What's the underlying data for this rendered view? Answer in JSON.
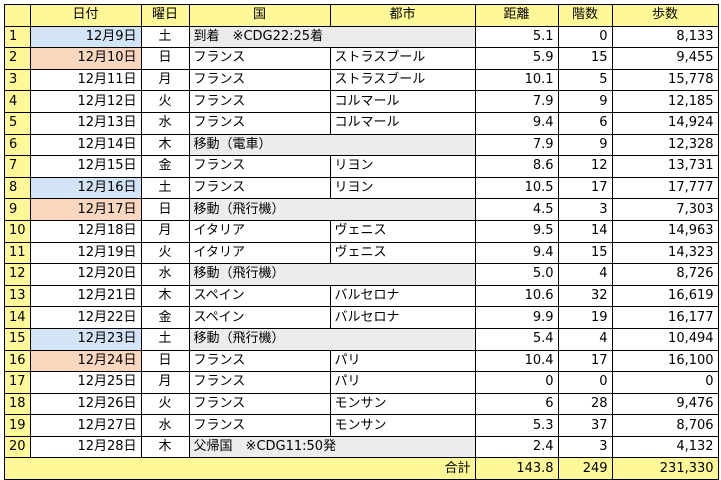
{
  "headers": [
    "",
    "日付",
    "曜日",
    "国",
    "都市",
    "距離",
    "階数",
    "歩数"
  ],
  "colors": {
    "header": "#fff899",
    "saturday": "#d4e4f7",
    "sunday": "#fbd7bf",
    "merged_gray": "#ececec"
  },
  "rows": [
    {
      "no": "1",
      "date": "12月9日",
      "day": "土",
      "country": "到着　※CDG22:25着",
      "city": "",
      "merged": true,
      "hl": "sat",
      "dist": "5.1",
      "floors": "0",
      "steps": "8,133"
    },
    {
      "no": "2",
      "date": "12月10日",
      "day": "日",
      "country": "フランス",
      "city": "ストラスブール",
      "merged": false,
      "hl": "sun",
      "dist": "5.9",
      "floors": "15",
      "steps": "9,455"
    },
    {
      "no": "3",
      "date": "12月11日",
      "day": "月",
      "country": "フランス",
      "city": "ストラスブール",
      "merged": false,
      "hl": "",
      "dist": "10.1",
      "floors": "5",
      "steps": "15,778"
    },
    {
      "no": "4",
      "date": "12月12日",
      "day": "火",
      "country": "フランス",
      "city": "コルマール",
      "merged": false,
      "hl": "",
      "dist": "7.9",
      "floors": "9",
      "steps": "12,185"
    },
    {
      "no": "5",
      "date": "12月13日",
      "day": "水",
      "country": "フランス",
      "city": "コルマール",
      "merged": false,
      "hl": "",
      "dist": "9.4",
      "floors": "6",
      "steps": "14,924"
    },
    {
      "no": "6",
      "date": "12月14日",
      "day": "木",
      "country": "移動（電車）",
      "city": "",
      "merged": true,
      "hl": "",
      "dist": "7.9",
      "floors": "9",
      "steps": "12,328"
    },
    {
      "no": "7",
      "date": "12月15日",
      "day": "金",
      "country": "フランス",
      "city": "リヨン",
      "merged": false,
      "hl": "",
      "dist": "8.6",
      "floors": "12",
      "steps": "13,731"
    },
    {
      "no": "8",
      "date": "12月16日",
      "day": "土",
      "country": "フランス",
      "city": "リヨン",
      "merged": false,
      "hl": "sat",
      "dist": "10.5",
      "floors": "17",
      "steps": "17,777"
    },
    {
      "no": "9",
      "date": "12月17日",
      "day": "日",
      "country": "移動（飛行機）",
      "city": "",
      "merged": true,
      "hl": "sun",
      "dist": "4.5",
      "floors": "3",
      "steps": "7,303"
    },
    {
      "no": "10",
      "date": "12月18日",
      "day": "月",
      "country": "イタリア",
      "city": "ヴェニス",
      "merged": false,
      "hl": "",
      "dist": "9.5",
      "floors": "14",
      "steps": "14,963"
    },
    {
      "no": "11",
      "date": "12月19日",
      "day": "火",
      "country": "イタリア",
      "city": "ヴェニス",
      "merged": false,
      "hl": "",
      "dist": "9.4",
      "floors": "15",
      "steps": "14,323"
    },
    {
      "no": "12",
      "date": "12月20日",
      "day": "水",
      "country": "移動（飛行機）",
      "city": "",
      "merged": true,
      "hl": "",
      "dist": "5.0",
      "floors": "4",
      "steps": "8,726"
    },
    {
      "no": "13",
      "date": "12月21日",
      "day": "木",
      "country": "スペイン",
      "city": "バルセロナ",
      "merged": false,
      "hl": "",
      "dist": "10.6",
      "floors": "32",
      "steps": "16,619"
    },
    {
      "no": "14",
      "date": "12月22日",
      "day": "金",
      "country": "スペイン",
      "city": "バルセロナ",
      "merged": false,
      "hl": "",
      "dist": "9.9",
      "floors": "19",
      "steps": "16,177"
    },
    {
      "no": "15",
      "date": "12月23日",
      "day": "土",
      "country": "移動（飛行機）",
      "city": "",
      "merged": true,
      "hl": "sat",
      "dist": "5.4",
      "floors": "4",
      "steps": "10,494"
    },
    {
      "no": "16",
      "date": "12月24日",
      "day": "日",
      "country": "フランス",
      "city": "パリ",
      "merged": false,
      "hl": "sun",
      "dist": "10.4",
      "floors": "17",
      "steps": "16,100"
    },
    {
      "no": "17",
      "date": "12月25日",
      "day": "月",
      "country": "フランス",
      "city": "パリ",
      "merged": false,
      "hl": "",
      "dist": "0",
      "floors": "0",
      "steps": "0"
    },
    {
      "no": "18",
      "date": "12月26日",
      "day": "火",
      "country": "フランス",
      "city": "モンサン",
      "merged": false,
      "hl": "",
      "dist": "6",
      "floors": "28",
      "steps": "9,476"
    },
    {
      "no": "19",
      "date": "12月27日",
      "day": "水",
      "country": "フランス",
      "city": "モンサン",
      "merged": false,
      "hl": "",
      "dist": "5.3",
      "floors": "37",
      "steps": "8,706"
    },
    {
      "no": "20",
      "date": "12月28日",
      "day": "木",
      "country": "父帰国　※CDG11:50発",
      "city": "",
      "merged": true,
      "hl": "",
      "dist": "2.4",
      "floors": "3",
      "steps": "4,132"
    }
  ],
  "total": {
    "label": "合計",
    "dist": "143.8",
    "floors": "249",
    "steps": "231,330"
  }
}
